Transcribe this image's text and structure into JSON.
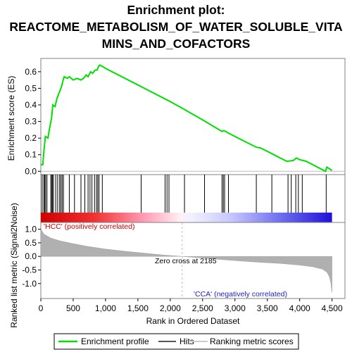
{
  "title_line1": "Enrichment plot:",
  "title_line2": "REACTOME_METABOLISM_OF_WATER_SOLUBLE_VITA",
  "title_line3": "MINS_AND_COFACTORS",
  "colors": {
    "profile": "#00e000",
    "hits": "#000000",
    "ranking": "#b0b0b0",
    "zero_line": "#bbbbbb"
  },
  "chart_data": [
    {
      "type": "line",
      "name": "enrichment-profile",
      "ylabel": "Enrichment score (ES)",
      "ylim": [
        -0.02,
        0.68
      ],
      "yticks": [
        "0.0",
        "0.1",
        "0.2",
        "0.3",
        "0.4",
        "0.5",
        "0.6"
      ],
      "ytick_values": [
        0.0,
        0.1,
        0.2,
        0.3,
        0.4,
        0.5,
        0.6
      ],
      "xlim": [
        0,
        4700
      ],
      "points": [
        [
          0,
          0.04
        ],
        [
          30,
          0.04
        ],
        [
          45,
          0.11
        ],
        [
          70,
          0.21
        ],
        [
          110,
          0.2
        ],
        [
          140,
          0.27
        ],
        [
          165,
          0.32
        ],
        [
          185,
          0.4
        ],
        [
          220,
          0.39
        ],
        [
          250,
          0.44
        ],
        [
          270,
          0.46
        ],
        [
          300,
          0.49
        ],
        [
          320,
          0.51
        ],
        [
          345,
          0.55
        ],
        [
          360,
          0.57
        ],
        [
          410,
          0.56
        ],
        [
          440,
          0.57
        ],
        [
          500,
          0.55
        ],
        [
          560,
          0.56
        ],
        [
          620,
          0.55
        ],
        [
          660,
          0.56
        ],
        [
          700,
          0.58
        ],
        [
          730,
          0.57
        ],
        [
          770,
          0.6
        ],
        [
          800,
          0.59
        ],
        [
          840,
          0.61
        ],
        [
          870,
          0.61
        ],
        [
          890,
          0.63
        ],
        [
          910,
          0.64
        ],
        [
          960,
          0.63
        ],
        [
          1000,
          0.62
        ],
        [
          1500,
          0.52
        ],
        [
          1600,
          0.5
        ],
        [
          2000,
          0.42
        ],
        [
          2185,
          0.38
        ],
        [
          2500,
          0.31
        ],
        [
          2800,
          0.24
        ],
        [
          2830,
          0.245
        ],
        [
          2900,
          0.23
        ],
        [
          3100,
          0.19
        ],
        [
          3330,
          0.145
        ],
        [
          3400,
          0.14
        ],
        [
          3600,
          0.1
        ],
        [
          3800,
          0.06
        ],
        [
          3900,
          0.065
        ],
        [
          3950,
          0.08
        ],
        [
          4000,
          0.07
        ],
        [
          4100,
          0.06
        ],
        [
          4400,
          0.0
        ],
        [
          4420,
          0.025
        ],
        [
          4500,
          0.005
        ]
      ]
    },
    {
      "type": "bar",
      "name": "hits",
      "x": [
        20,
        45,
        60,
        75,
        95,
        155,
        165,
        180,
        195,
        230,
        260,
        290,
        310,
        330,
        350,
        440,
        520,
        620,
        680,
        730,
        760,
        790,
        830,
        860,
        880,
        900,
        950,
        1550,
        1920,
        1950,
        1980,
        2220,
        2530,
        2800,
        2820,
        2840,
        2900,
        3330,
        3570,
        3820,
        3870,
        3940,
        3980,
        4040,
        4410
      ]
    },
    {
      "type": "area",
      "name": "ranked-list-metric",
      "ylabel": "Ranked list metric (Signal2Noise)",
      "xlabel": "Rank in Ordered Dataset",
      "ylim": [
        -1.55,
        1.25
      ],
      "yticks": [
        "-1.0",
        "-0.5",
        "0.0",
        "0.5",
        "1.0"
      ],
      "ytick_values": [
        -1.0,
        -0.5,
        0.0,
        0.5,
        1.0
      ],
      "xlim": [
        0,
        4700
      ],
      "xticks": [
        "0",
        "500",
        "1,000",
        "1,500",
        "2,000",
        "2,500",
        "3,000",
        "3,500",
        "4,000",
        "4,500"
      ],
      "xtick_values": [
        0,
        500,
        1000,
        1500,
        2000,
        2500,
        3000,
        3500,
        4000,
        4500
      ],
      "zero_cross": 2185,
      "n_genes": 4500,
      "points": [
        [
          0,
          1.0
        ],
        [
          50,
          0.82
        ],
        [
          150,
          0.68
        ],
        [
          300,
          0.57
        ],
        [
          500,
          0.47
        ],
        [
          700,
          0.38
        ],
        [
          1000,
          0.27
        ],
        [
          1300,
          0.19
        ],
        [
          1600,
          0.12
        ],
        [
          1900,
          0.05
        ],
        [
          2185,
          0.0
        ],
        [
          2500,
          -0.06
        ],
        [
          2800,
          -0.12
        ],
        [
          3100,
          -0.17
        ],
        [
          3400,
          -0.22
        ],
        [
          3700,
          -0.26
        ],
        [
          4000,
          -0.32
        ],
        [
          4200,
          -0.38
        ],
        [
          4350,
          -0.47
        ],
        [
          4420,
          -0.58
        ],
        [
          4460,
          -0.75
        ],
        [
          4480,
          -0.95
        ],
        [
          4495,
          -1.25
        ],
        [
          4500,
          -1.32
        ]
      ]
    }
  ],
  "annotations": {
    "zero_cross_text": "Zero cross at 2185",
    "positive_text": "'HCC' (positively correlated)",
    "negative_text": "'CCA' (negatively correlated)"
  },
  "legend": {
    "items": [
      "Enrichment profile",
      "Hits",
      "Ranking metric scores"
    ]
  }
}
